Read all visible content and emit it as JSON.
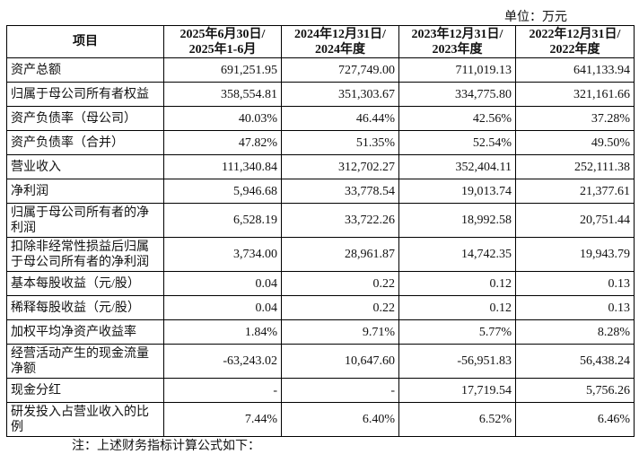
{
  "unit": "单位：万元",
  "headers": [
    {
      "line1": "项目",
      "line2": ""
    },
    {
      "line1": "2025年6月30日/",
      "line2": "2025年1-6月"
    },
    {
      "line1": "2024年12月31日/",
      "line2": "2024年度"
    },
    {
      "line1": "2023年12月31日/",
      "line2": "2023年度"
    },
    {
      "line1": "2022年12月31日/",
      "line2": "2022年度"
    }
  ],
  "rows": [
    {
      "label": "资产总额",
      "values": [
        "691,251.95",
        "727,749.00",
        "711,019.13",
        "641,133.94"
      ]
    },
    {
      "label": "归属于母公司所有者权益",
      "values": [
        "358,554.81",
        "351,303.67",
        "334,775.80",
        "321,161.66"
      ]
    },
    {
      "label": "资产负债率（母公司）",
      "values": [
        "40.03%",
        "46.44%",
        "42.56%",
        "37.28%"
      ]
    },
    {
      "label": "资产负债率（合并）",
      "values": [
        "47.82%",
        "51.35%",
        "52.54%",
        "49.50%"
      ]
    },
    {
      "label": "营业收入",
      "values": [
        "111,340.84",
        "312,702.27",
        "352,404.11",
        "252,111.38"
      ]
    },
    {
      "label": "净利润",
      "values": [
        "5,946.68",
        "33,778.54",
        "19,013.74",
        "21,377.61"
      ]
    },
    {
      "label": "归属于母公司所有者的净利润",
      "values": [
        "6,528.19",
        "33,722.26",
        "18,992.58",
        "20,751.44"
      ]
    },
    {
      "label": "扣除非经常性损益后归属于母公司所有者的净利润",
      "values": [
        "3,734.00",
        "28,961.87",
        "14,742.35",
        "19,943.79"
      ]
    },
    {
      "label": "基本每股收益（元/股）",
      "values": [
        "0.04",
        "0.22",
        "0.12",
        "0.13"
      ]
    },
    {
      "label": "稀释每股收益（元/股）",
      "values": [
        "0.04",
        "0.22",
        "0.12",
        "0.13"
      ]
    },
    {
      "label": "加权平均净资产收益率",
      "values": [
        "1.84%",
        "9.71%",
        "5.77%",
        "8.28%"
      ]
    },
    {
      "label": "经营活动产生的现金流量净额",
      "values": [
        "-63,243.02",
        "10,647.60",
        "-56,951.83",
        "56,438.24"
      ]
    },
    {
      "label": "现金分红",
      "values": [
        "-",
        "-",
        "17,719.54",
        "5,756.26"
      ]
    },
    {
      "label": "研发投入占营业收入的比例",
      "values": [
        "7.44%",
        "6.40%",
        "6.52%",
        "6.46%"
      ]
    }
  ],
  "note": "注：上述财务指标计算公式如下："
}
